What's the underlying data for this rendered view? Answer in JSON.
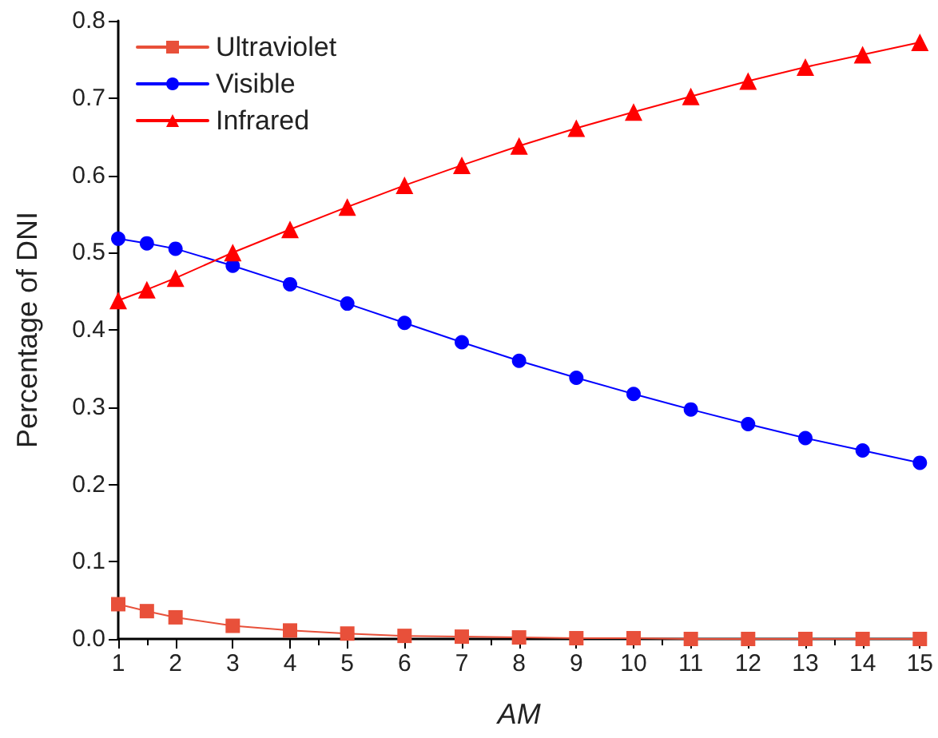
{
  "chart_data": {
    "type": "line",
    "xlabel": "AM",
    "ylabel": "Percentage of DNI",
    "x": [
      1,
      1.5,
      2,
      3,
      4,
      5,
      6,
      7,
      8,
      9,
      10,
      11,
      12,
      13,
      14,
      15
    ],
    "series": [
      {
        "name": "Ultraviolet",
        "color": "#e8503a",
        "marker": "square",
        "values": [
          0.045,
          0.036,
          0.028,
          0.017,
          0.011,
          0.007,
          0.004,
          0.003,
          0.002,
          0.001,
          0.001,
          0.0,
          0.0,
          0.0,
          0.0,
          0.0
        ]
      },
      {
        "name": "Visible",
        "color": "#0000ff",
        "marker": "circle",
        "values": [
          0.518,
          0.512,
          0.505,
          0.483,
          0.459,
          0.434,
          0.409,
          0.384,
          0.36,
          0.338,
          0.317,
          0.297,
          0.278,
          0.26,
          0.244,
          0.228
        ]
      },
      {
        "name": "Infrared",
        "color": "#ff0000",
        "marker": "triangle",
        "values": [
          0.438,
          0.452,
          0.467,
          0.5,
          0.53,
          0.559,
          0.587,
          0.613,
          0.638,
          0.661,
          0.682,
          0.702,
          0.722,
          0.74,
          0.756,
          0.772
        ]
      }
    ],
    "xlim": [
      1,
      15
    ],
    "xticks": [
      1,
      2,
      3,
      4,
      5,
      6,
      7,
      8,
      9,
      10,
      11,
      12,
      13,
      14,
      15
    ],
    "ylim": [
      0,
      0.8
    ],
    "yticks": [
      {
        "value": 0,
        "label": "0.0"
      },
      {
        "value": 0.1,
        "label": "0.1"
      },
      {
        "value": 0.2,
        "label": "0.2"
      },
      {
        "value": 0.3,
        "label": "0.3"
      },
      {
        "value": 0.4,
        "label": "0.4"
      },
      {
        "value": 0.5,
        "label": "0.5"
      },
      {
        "value": 0.6,
        "label": "0.6"
      },
      {
        "value": 0.7,
        "label": "0.7"
      },
      {
        "value": 0.8,
        "label": "0.8"
      }
    ],
    "grid": false,
    "legend": "top left",
    "line_style": "solid"
  }
}
